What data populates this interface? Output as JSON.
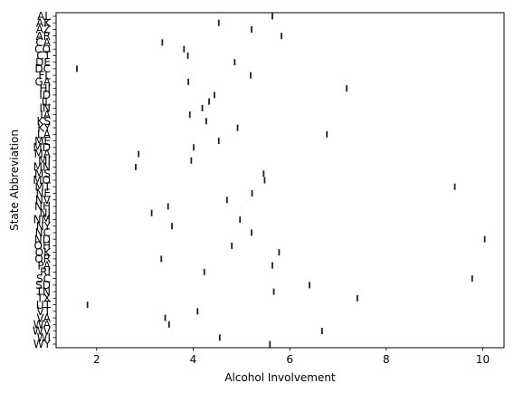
{
  "chart_data": {
    "type": "scatter",
    "title": "",
    "xlabel": "Alcohol Involvement",
    "ylabel": "State Abbreviation",
    "xlim": [
      1.16,
      10.44
    ],
    "xticks": [
      2,
      4,
      6,
      8,
      10
    ],
    "grid": false,
    "marker": "vertical-line",
    "marker_color": "#1f1f1f",
    "categories": [
      "AL",
      "AK",
      "AZ",
      "AR",
      "CA",
      "CO",
      "CT",
      "DE",
      "DC",
      "FL",
      "GA",
      "HI",
      "ID",
      "IL",
      "IN",
      "IA",
      "KS",
      "KY",
      "LA",
      "ME",
      "MD",
      "MA",
      "MI",
      "MN",
      "MS",
      "MO",
      "MT",
      "NE",
      "NV",
      "NH",
      "NJ",
      "NM",
      "NY",
      "NC",
      "ND",
      "OH",
      "OK",
      "OR",
      "PA",
      "RI",
      "SC",
      "SD",
      "TN",
      "TX",
      "UT",
      "VT",
      "VA",
      "WA",
      "WV",
      "WI",
      "WY"
    ],
    "values": [
      5.64,
      4.53,
      5.21,
      5.83,
      3.36,
      3.81,
      3.89,
      4.86,
      1.59,
      5.19,
      3.9,
      7.18,
      4.44,
      4.33,
      4.19,
      3.93,
      4.27,
      4.92,
      6.77,
      4.53,
      4.01,
      2.87,
      3.96,
      2.81,
      5.46,
      5.48,
      9.42,
      5.22,
      4.7,
      3.48,
      3.14,
      4.97,
      3.56,
      5.21,
      10.04,
      4.8,
      5.78,
      3.34,
      5.64,
      4.23,
      9.78,
      6.41,
      5.67,
      7.4,
      1.81,
      4.09,
      3.42,
      3.5,
      6.67,
      4.55,
      5.59
    ]
  }
}
